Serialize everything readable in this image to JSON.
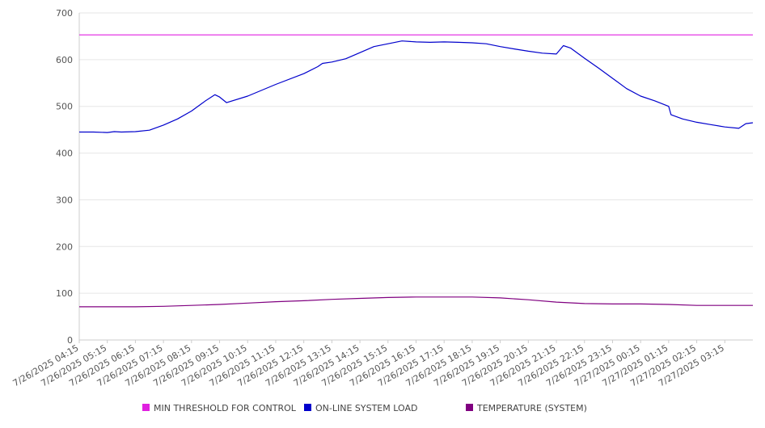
{
  "chart_data": {
    "type": "line",
    "title": "",
    "xlabel": "",
    "ylabel": "",
    "ylim": [
      0,
      700
    ],
    "yticks": [
      0,
      100,
      200,
      300,
      400,
      500,
      600,
      700
    ],
    "grid": true,
    "legend_position": "bottom",
    "x_start": "7/26/2025 04:15",
    "x_end": "7/27/2025 04:15",
    "xtick_labels": [
      "7/26/2025 04:15",
      "7/26/2025 05:15",
      "7/26/2025 06:15",
      "7/26/2025 07:15",
      "7/26/2025 08:15",
      "7/26/2025 09:15",
      "7/26/2025 10:15",
      "7/26/2025 11:15",
      "7/26/2025 12:15",
      "7/26/2025 13:15",
      "7/26/2025 14:15",
      "7/26/2025 15:15",
      "7/26/2025 16:15",
      "7/26/2025 17:15",
      "7/26/2025 18:15",
      "7/26/2025 19:15",
      "7/26/2025 20:15",
      "7/26/2025 21:15",
      "7/26/2025 22:15",
      "7/26/2025 23:15",
      "7/27/2025 00:15",
      "7/27/2025 01:15",
      "7/27/2025 02:15",
      "7/27/2025 03:15"
    ],
    "series": [
      {
        "name": "MIN THRESHOLD FOR CONTROL",
        "color": "#e020e0",
        "x": [
          "7/26/2025 04:15",
          "7/27/2025 04:15"
        ],
        "values": [
          653,
          653
        ]
      },
      {
        "name": "ON-LINE SYSTEM LOAD",
        "color": "#0000cc",
        "x": [
          "7/26/2025 04:15",
          "7/26/2025 04:45",
          "7/26/2025 05:15",
          "7/26/2025 05:30",
          "7/26/2025 05:45",
          "7/26/2025 06:15",
          "7/26/2025 06:45",
          "7/26/2025 07:15",
          "7/26/2025 07:45",
          "7/26/2025 08:15",
          "7/26/2025 08:45",
          "7/26/2025 09:05",
          "7/26/2025 09:15",
          "7/26/2025 09:30",
          "7/26/2025 10:15",
          "7/26/2025 11:15",
          "7/26/2025 12:15",
          "7/26/2025 12:45",
          "7/26/2025 12:55",
          "7/26/2025 13:15",
          "7/26/2025 13:45",
          "7/26/2025 14:15",
          "7/26/2025 14:45",
          "7/26/2025 15:15",
          "7/26/2025 15:45",
          "7/26/2025 16:15",
          "7/26/2025 16:45",
          "7/26/2025 17:15",
          "7/26/2025 17:45",
          "7/26/2025 18:15",
          "7/26/2025 18:45",
          "7/26/2025 19:15",
          "7/26/2025 19:45",
          "7/26/2025 20:15",
          "7/26/2025 20:45",
          "7/26/2025 21:15",
          "7/26/2025 21:30",
          "7/26/2025 21:45",
          "7/26/2025 22:15",
          "7/26/2025 22:45",
          "7/26/2025 23:15",
          "7/26/2025 23:45",
          "7/27/2025 00:15",
          "7/27/2025 00:45",
          "7/27/2025 01:15",
          "7/27/2025 01:20",
          "7/27/2025 01:45",
          "7/27/2025 02:15",
          "7/27/2025 02:45",
          "7/27/2025 03:15",
          "7/27/2025 03:45",
          "7/27/2025 04:00",
          "7/27/2025 04:15"
        ],
        "values": [
          445,
          445,
          444,
          446,
          445,
          446,
          449,
          460,
          473,
          490,
          512,
          525,
          520,
          508,
          522,
          547,
          570,
          585,
          592,
          595,
          602,
          615,
          628,
          634,
          640,
          638,
          637,
          638,
          637,
          636,
          634,
          628,
          623,
          618,
          614,
          612,
          630,
          625,
          603,
          582,
          560,
          538,
          522,
          512,
          500,
          482,
          473,
          466,
          461,
          456,
          453,
          463,
          465
        ]
      },
      {
        "name": "TEMPERATURE (SYSTEM)",
        "color": "#800080",
        "x": [
          "7/26/2025 04:15",
          "7/26/2025 06:15",
          "7/26/2025 07:15",
          "7/26/2025 08:15",
          "7/26/2025 09:15",
          "7/26/2025 10:15",
          "7/26/2025 11:15",
          "7/26/2025 12:15",
          "7/26/2025 13:15",
          "7/26/2025 14:15",
          "7/26/2025 15:15",
          "7/26/2025 16:15",
          "7/26/2025 17:15",
          "7/26/2025 18:15",
          "7/26/2025 19:15",
          "7/26/2025 20:15",
          "7/26/2025 21:15",
          "7/26/2025 22:15",
          "7/26/2025 23:15",
          "7/27/2025 00:15",
          "7/27/2025 01:15",
          "7/27/2025 02:15",
          "7/27/2025 03:15",
          "7/27/2025 04:15"
        ],
        "values": [
          71,
          71,
          72,
          74,
          76,
          79,
          82,
          84,
          87,
          89,
          91,
          92,
          92,
          92,
          90,
          86,
          81,
          78,
          77,
          77,
          76,
          74,
          74,
          74
        ]
      }
    ]
  }
}
